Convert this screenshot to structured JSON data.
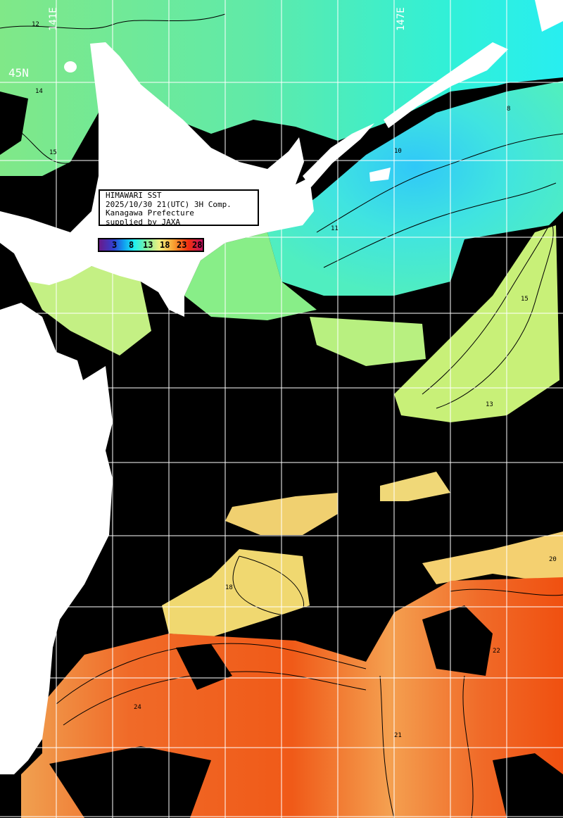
{
  "info_box": {
    "line1": "HIMAWARI SST",
    "line2": "2025/10/30 21(UTC) 3H Comp.",
    "line3": "Kanagawa Prefecture",
    "line4": "supplied by JAXA"
  },
  "colorbar": {
    "labels": [
      "3",
      "8",
      "13",
      "18",
      "23",
      "28"
    ],
    "colors": [
      "#6a1a8a",
      "#3040d0",
      "#10a0f0",
      "#20f0f0",
      "#80f0a0",
      "#f0f080",
      "#f8a030",
      "#f03010",
      "#c01060"
    ]
  },
  "grid_labels": {
    "lat": "45N",
    "lon_left": "141E",
    "lon_right": "147E"
  },
  "contour_labels": [
    "12",
    "14",
    "15",
    "8",
    "10",
    "11",
    "13",
    "15",
    "18",
    "21",
    "22",
    "24",
    "20"
  ],
  "colors": {
    "land": "#ffffff",
    "no_data": "#000000",
    "grid": "#ffffff",
    "contour": "#000000"
  }
}
